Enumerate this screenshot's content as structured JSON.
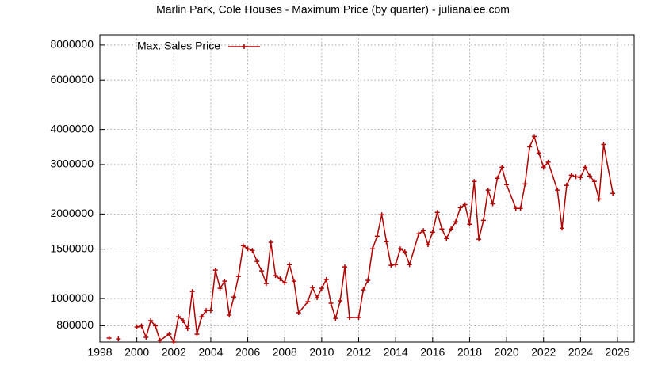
{
  "chart_data": {
    "type": "line",
    "title": "Marlin Park, Cole Houses - Maximum Price (by quarter) - julianalee.com",
    "log_y": true,
    "grid": true,
    "legend": "top-left",
    "xlim": [
      1998,
      2026.9
    ],
    "xticks": [
      1998,
      2000,
      2002,
      2004,
      2006,
      2008,
      2010,
      2012,
      2014,
      2016,
      2018,
      2020,
      2022,
      2024,
      2026
    ],
    "ylim": [
      700000,
      8700000
    ],
    "yticks": [
      800000,
      1000000,
      1500000,
      2000000,
      3000000,
      4000000,
      6000000,
      8000000
    ],
    "x": [
      1998.5,
      1998.75,
      1999,
      1999.25,
      2000,
      2000.25,
      2000.5,
      2000.75,
      2001,
      2001.25,
      2001.75,
      2002,
      2002.25,
      2002.5,
      2002.75,
      2003,
      2003.25,
      2003.5,
      2003.75,
      2004,
      2004.25,
      2004.5,
      2004.75,
      2005,
      2005.25,
      2005.5,
      2005.75,
      2006,
      2006.25,
      2006.5,
      2006.75,
      2007,
      2007.25,
      2007.5,
      2007.75,
      2008,
      2008.25,
      2008.5,
      2008.75,
      2009.25,
      2009.5,
      2009.75,
      2010,
      2010.25,
      2010.5,
      2010.75,
      2011,
      2011.25,
      2011.5,
      2012,
      2012.25,
      2012.5,
      2012.75,
      2013,
      2013.25,
      2013.5,
      2013.75,
      2014,
      2014.25,
      2014.5,
      2014.75,
      2015.25,
      2015.5,
      2015.75,
      2016,
      2016.25,
      2016.5,
      2016.75,
      2017,
      2017.25,
      2017.5,
      2017.75,
      2018,
      2018.25,
      2018.5,
      2018.75,
      2019,
      2019.25,
      2019.5,
      2019.75,
      2020,
      2020.5,
      2020.75,
      2021,
      2021.25,
      2021.5,
      2021.75,
      2022,
      2022.25,
      2022.75,
      2023,
      2023.25,
      2023.5,
      2023.75,
      2024,
      2024.25,
      2024.5,
      2024.75,
      2025,
      2025.25,
      2025.75
    ],
    "series": [
      {
        "name": "Max. Sales Price",
        "color": "#b00000",
        "values": [
          723000,
          null,
          718000,
          null,
          792000,
          800000,
          728000,
          834000,
          800000,
          709000,
          747000,
          700000,
          861000,
          834000,
          782000,
          1060000,
          747000,
          861000,
          907000,
          907000,
          1263000,
          1088000,
          1153000,
          873000,
          1013000,
          1199000,
          1544000,
          1504000,
          1485000,
          1357000,
          1255000,
          1131000,
          1585000,
          1207000,
          1176000,
          1138000,
          1321000,
          1153000,
          890000,
          974000,
          1095000,
          1007000,
          1088000,
          1169000,
          962000,
          850000,
          981000,
          1296000,
          856000,
          856000,
          1074000,
          1161000,
          1504000,
          1669000,
          1988000,
          1595000,
          1313000,
          1321000,
          1504000,
          1466000,
          1321000,
          1702000,
          1746000,
          1555000,
          1724000,
          2027000,
          1769000,
          1637000,
          1769000,
          1876000,
          2107000,
          2161000,
          1840000,
          2612000,
          1627000,
          1899000,
          2433000,
          2175000,
          2681000,
          2933000,
          2546000,
          2095000,
          2095000,
          2560000,
          3470000,
          3780000,
          3300000,
          2933000,
          3060000,
          2433000,
          1780000,
          2530000,
          2750000,
          2715000,
          2700000,
          2933000,
          2730000,
          2612000,
          2260000,
          3540000,
          2370000
        ]
      }
    ]
  }
}
